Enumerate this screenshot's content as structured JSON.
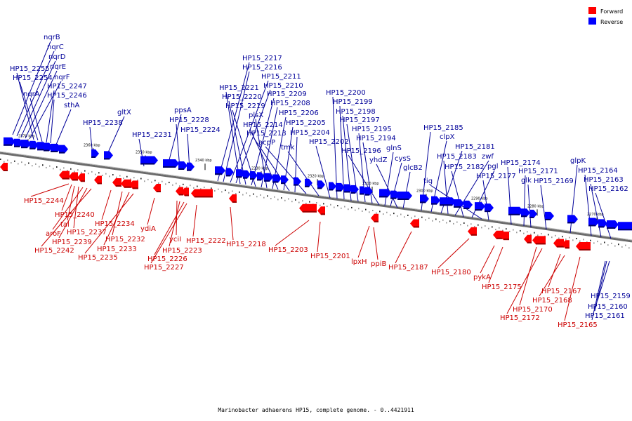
{
  "caption": "Marinobacter adhaerens HP15, complete genome. - 0..4421911",
  "colors": {
    "forward": "#ff0000",
    "reverse": "#0000ff",
    "label_forward": "#cc0000",
    "label_reverse": "#000099"
  },
  "legend": [
    {
      "key": "forward",
      "label": "Forward"
    },
    {
      "key": "reverse",
      "label": "Reverse"
    }
  ],
  "ticks": [
    "2370 kbp",
    "2360 kbp",
    "2350 kbp",
    "2340 kbp",
    "2330 kbp",
    "2320 kbp",
    "2310 kbp",
    "2300 kbp",
    "2290 kbp",
    "2280 kbp",
    "2270 kbp"
  ],
  "reverse_genes": [
    "nqrB",
    "nqrC",
    "nqrD",
    "nqrE",
    "nqrF",
    "HP15_2255",
    "HP15_2254",
    "nqrA",
    "HP15_2247",
    "HP15_2246",
    "sthA",
    "HP15_2238",
    "gltX",
    "HP15_2231",
    "ppsA",
    "HP15_2228",
    "HP15_2224",
    "HP15_2217",
    "HP15_2216",
    "HP15_2211",
    "HP15_2210",
    "HP15_2221",
    "HP15_2220",
    "HP15_2209",
    "HP15_2219",
    "HP15_2208",
    "plsX",
    "HP15_2206",
    "HP15_2214",
    "HP15_2205",
    "HP15_2213",
    "HP15_2204",
    "acpP",
    "tmk",
    "HP15_2202",
    "HP15_2200",
    "HP15_2199",
    "HP15_2198",
    "HP15_2197",
    "HP15_2195",
    "HP15_2194",
    "HP15_2196",
    "glnS",
    "cysS",
    "yhdZ",
    "glcB2",
    "HP15_2185",
    "clpX",
    "HP15_2181",
    "HP15_2183",
    "zwf",
    "HP15_2182",
    "pgl",
    "tig",
    "HP15_2177",
    "HP15_2174",
    "HP15_2171",
    "glk",
    "HP15_2169",
    "glpK",
    "HP15_2164",
    "HP15_2163",
    "HP15_2162",
    "HP15_2159",
    "HP15_2160",
    "HP15_2161"
  ],
  "forward_genes": [
    "HP15_2244",
    "HP15_2240",
    "tal",
    "HP15_2237",
    "aroF",
    "HP15_2239",
    "HP15_2242",
    "HP15_2234",
    "HP15_2232",
    "HP15_2233",
    "HP15_2235",
    "ydiA",
    "yciI",
    "HP15_2223",
    "HP15_2226",
    "HP15_2227",
    "HP15_2222",
    "HP15_2218",
    "HP15_2203",
    "HP15_2201",
    "lpxH",
    "ppiB",
    "HP15_2187",
    "HP15_2180",
    "pykA",
    "HP15_2175",
    "HP15_2167",
    "HP15_2168",
    "HP15_2170",
    "HP15_2172",
    "HP15_2165"
  ]
}
